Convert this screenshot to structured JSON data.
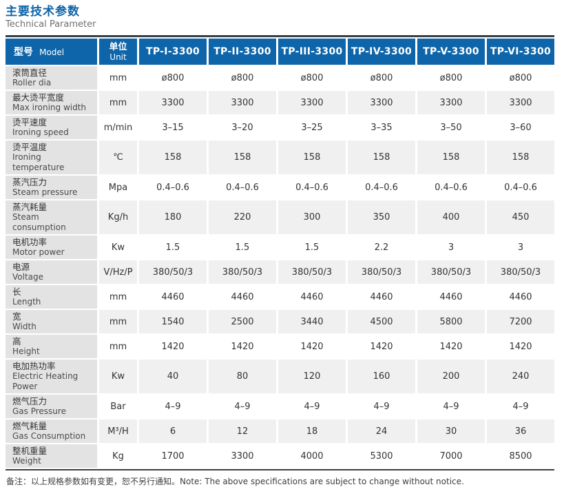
{
  "page": {
    "title_zh": "主要技术参数",
    "title_en": "Technical Parameter",
    "note": "备注：以上规格参数如有变更，恕不另行通知。Note: The above specifications are subject to change without notice."
  },
  "colors": {
    "accent_blue": "#0e65a9",
    "top_bottom_border": "#3a3f44",
    "label_column_bg": "#e3e3e3",
    "zebra_row_bg": "#f0f0f0"
  },
  "table": {
    "header": {
      "model_zh": "型号",
      "model_en": "Model",
      "unit_zh": "单位",
      "unit_en": "Unit",
      "models": [
        "TP-I-3300",
        "TP-II-3300",
        "TP-III-3300",
        "TP-IV-3300",
        "TP-V-3300",
        "TP-VI-3300"
      ]
    },
    "rows": [
      {
        "label_zh": "滚筒直径",
        "label_en": "Roller dia",
        "unit": "mm",
        "values": [
          "ø800",
          "ø800",
          "ø800",
          "ø800",
          "ø800",
          "ø800"
        ]
      },
      {
        "label_zh": "最大烫平宽度",
        "label_en": "Max ironing width",
        "unit": "mm",
        "values": [
          "3300",
          "3300",
          "3300",
          "3300",
          "3300",
          "3300"
        ]
      },
      {
        "label_zh": "烫平速度",
        "label_en": "Ironing speed",
        "unit": "m/min",
        "values": [
          "3–15",
          "3–20",
          "3–25",
          "3–35",
          "3–50",
          "3–60"
        ]
      },
      {
        "label_zh": "烫平温度",
        "label_en": "Ironing temperature",
        "unit": "℃",
        "values": [
          "158",
          "158",
          "158",
          "158",
          "158",
          "158"
        ]
      },
      {
        "label_zh": "蒸汽压力",
        "label_en": "Steam pressure",
        "unit": "Mpa",
        "values": [
          "0.4–0.6",
          "0.4–0.6",
          "0.4–0.6",
          "0.4–0.6",
          "0.4–0.6",
          "0.4–0.6"
        ]
      },
      {
        "label_zh": "蒸汽耗量",
        "label_en": "Steam consumption",
        "unit": "Kg/h",
        "values": [
          "180",
          "220",
          "300",
          "350",
          "400",
          "450"
        ]
      },
      {
        "label_zh": "电机功率",
        "label_en": "Motor power",
        "unit": "Kw",
        "values": [
          "1.5",
          "1.5",
          "1.5",
          "2.2",
          "3",
          "3"
        ]
      },
      {
        "label_zh": "电源",
        "label_en": "Voltage",
        "unit": "V/Hz/P",
        "values": [
          "380/50/3",
          "380/50/3",
          "380/50/3",
          "380/50/3",
          "380/50/3",
          "380/50/3"
        ]
      },
      {
        "label_zh": "长",
        "label_en": "Length",
        "unit": "mm",
        "values": [
          "4460",
          "4460",
          "4460",
          "4460",
          "4460",
          "4460"
        ]
      },
      {
        "label_zh": "宽",
        "label_en": "Width",
        "unit": "mm",
        "values": [
          "1540",
          "2500",
          "3440",
          "4500",
          "5800",
          "7200"
        ]
      },
      {
        "label_zh": "高",
        "label_en": "Height",
        "unit": "mm",
        "values": [
          "1420",
          "1420",
          "1420",
          "1420",
          "1420",
          "1420"
        ]
      },
      {
        "label_zh": "电加热功率",
        "label_en": "Electric Heating Power",
        "unit": "Kw",
        "values": [
          "40",
          "80",
          "120",
          "160",
          "200",
          "240"
        ]
      },
      {
        "label_zh": "燃气压力",
        "label_en": "Gas Pressure",
        "unit": "Bar",
        "values": [
          "4–9",
          "4–9",
          "4–9",
          "4–9",
          "4–9",
          "4–9"
        ]
      },
      {
        "label_zh": "燃气耗量",
        "label_en": "Gas Consumption",
        "unit": "M³/H",
        "values": [
          "6",
          "12",
          "18",
          "24",
          "30",
          "36"
        ]
      },
      {
        "label_zh": "整机重量",
        "label_en": "Weight",
        "unit": "Kg",
        "values": [
          "1700",
          "3300",
          "4000",
          "5300",
          "7000",
          "8500"
        ]
      }
    ]
  }
}
